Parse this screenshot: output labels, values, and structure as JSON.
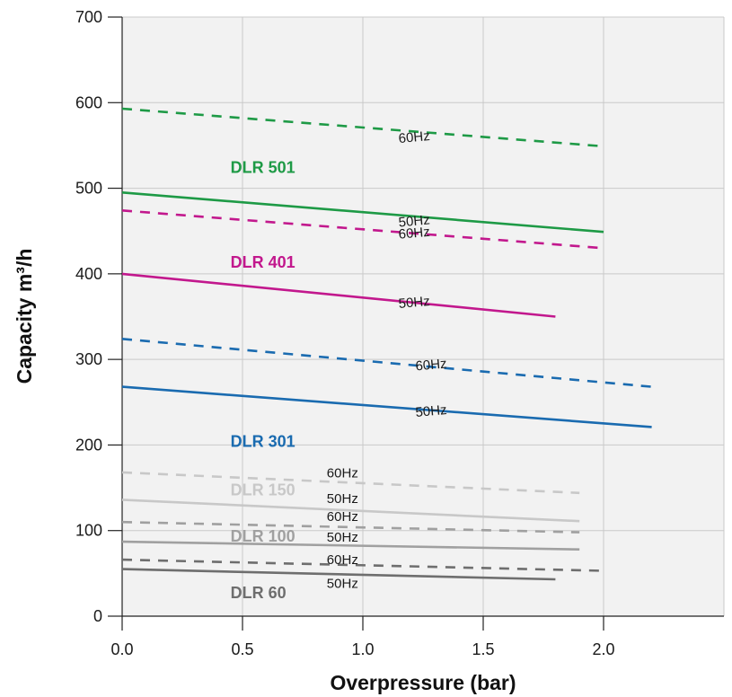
{
  "chart_data": {
    "type": "line",
    "title": "",
    "xlabel": "Overpressure (bar)",
    "ylabel": "Capacity m³/h",
    "xlim": [
      0,
      2.5
    ],
    "ylim": [
      0,
      700
    ],
    "x_ticks": [
      "0.0",
      "0.5",
      "1.0",
      "1.5",
      "2.0"
    ],
    "y_ticks": [
      "0",
      "100",
      "200",
      "300",
      "400",
      "500",
      "600",
      "700"
    ],
    "grid": true,
    "series": [
      {
        "model": "DLR 501",
        "freq": "60Hz",
        "dashed": true,
        "color": "#1e9a46",
        "x": [
          0,
          2.0
        ],
        "y": [
          593,
          549
        ]
      },
      {
        "model": "DLR 501",
        "freq": "50Hz",
        "dashed": false,
        "color": "#1e9a46",
        "x": [
          0,
          2.0
        ],
        "y": [
          495,
          449
        ]
      },
      {
        "model": "DLR 401",
        "freq": "60Hz",
        "dashed": true,
        "color": "#c2188d",
        "x": [
          0,
          2.0
        ],
        "y": [
          474,
          430
        ]
      },
      {
        "model": "DLR 401",
        "freq": "50Hz",
        "dashed": false,
        "color": "#c2188d",
        "x": [
          0,
          1.8
        ],
        "y": [
          400,
          350
        ]
      },
      {
        "model": "DLR 301",
        "freq": "60Hz",
        "dashed": true,
        "color": "#1a6bb0",
        "x": [
          0,
          2.2
        ],
        "y": [
          324,
          268
        ]
      },
      {
        "model": "DLR 301",
        "freq": "50Hz",
        "dashed": false,
        "color": "#1a6bb0",
        "x": [
          0,
          2.2
        ],
        "y": [
          268,
          221
        ]
      },
      {
        "model": "DLR 150",
        "freq": "60Hz",
        "dashed": true,
        "color": "#c8c8c8",
        "x": [
          0,
          1.9
        ],
        "y": [
          168,
          144
        ]
      },
      {
        "model": "DLR 150",
        "freq": "50Hz",
        "dashed": false,
        "color": "#c8c8c8",
        "x": [
          0,
          1.9
        ],
        "y": [
          136,
          111
        ]
      },
      {
        "model": "DLR 100",
        "freq": "60Hz",
        "dashed": true,
        "color": "#a0a0a0",
        "x": [
          0,
          1.9
        ],
        "y": [
          110,
          98
        ]
      },
      {
        "model": "DLR 100",
        "freq": "50Hz",
        "dashed": false,
        "color": "#a0a0a0",
        "x": [
          0,
          1.9
        ],
        "y": [
          87,
          78
        ]
      },
      {
        "model": "DLR 60",
        "freq": "60Hz",
        "dashed": true,
        "color": "#6e6e6e",
        "x": [
          0,
          2.0
        ],
        "y": [
          66,
          53
        ]
      },
      {
        "model": "DLR 60",
        "freq": "50Hz",
        "dashed": false,
        "color": "#6e6e6e",
        "x": [
          0,
          1.8
        ],
        "y": [
          55,
          43
        ]
      }
    ],
    "series_labels": [
      {
        "text": "DLR 501",
        "color": "#1e9a46",
        "x": 0.45,
        "y": 518
      },
      {
        "text": "DLR 401",
        "color": "#c2188d",
        "x": 0.45,
        "y": 407
      },
      {
        "text": "DLR 301",
        "color": "#1a6bb0",
        "x": 0.45,
        "y": 198
      },
      {
        "text": "DLR 150",
        "color": "#c8c8c8",
        "x": 0.45,
        "y": 141
      },
      {
        "text": "DLR 100",
        "color": "#a0a0a0",
        "x": 0.45,
        "y": 87
      },
      {
        "text": "DLR 60",
        "color": "#6e6e6e",
        "x": 0.45,
        "y": 21
      }
    ],
    "freq_labels": [
      {
        "text": "60Hz",
        "x": 1.15,
        "y": 553,
        "angle": -5
      },
      {
        "text": "50Hz",
        "x": 1.15,
        "y": 455,
        "angle": -5
      },
      {
        "text": "60Hz",
        "x": 1.15,
        "y": 441,
        "angle": -5
      },
      {
        "text": "50Hz",
        "x": 1.15,
        "y": 360,
        "angle": -5
      },
      {
        "text": "60Hz",
        "x": 1.22,
        "y": 287,
        "angle": -5
      },
      {
        "text": "50Hz",
        "x": 1.22,
        "y": 233,
        "angle": -5
      },
      {
        "text": "60Hz",
        "x": 0.85,
        "y": 162,
        "angle": 0
      },
      {
        "text": "50Hz",
        "x": 0.85,
        "y": 132,
        "angle": 0
      },
      {
        "text": "60Hz",
        "x": 0.85,
        "y": 111,
        "angle": 0
      },
      {
        "text": "50Hz",
        "x": 0.85,
        "y": 87,
        "angle": 0
      },
      {
        "text": "60Hz",
        "x": 0.85,
        "y": 61,
        "angle": 0
      },
      {
        "text": "50Hz",
        "x": 0.85,
        "y": 33,
        "angle": 0
      }
    ]
  }
}
